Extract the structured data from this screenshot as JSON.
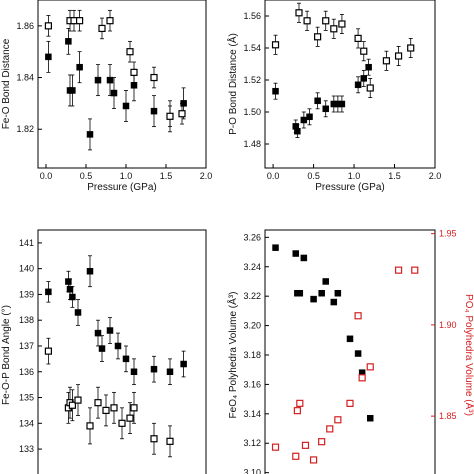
{
  "chart_data": [
    {
      "type": "scatter",
      "panel": "top-left",
      "xlabel": "Pressure (GPa)",
      "ylabel": "Fe-O Bond Distance",
      "xlim": [
        -0.1,
        2.0
      ],
      "ylim": [
        1.805,
        1.87
      ],
      "xticks": [
        "0.0",
        "0.5",
        "1.0",
        "1.5",
        "2.0"
      ],
      "yticks": [
        "1.82",
        "1.84",
        "1.86"
      ],
      "series": [
        {
          "marker": "filled-square",
          "x": [
            0.03,
            0.28,
            0.3,
            0.33,
            0.42,
            0.55,
            0.65,
            0.8,
            0.85,
            1.0,
            1.1,
            1.35,
            1.55,
            1.72
          ],
          "y": [
            1.848,
            1.854,
            1.835,
            1.835,
            1.844,
            1.818,
            1.839,
            1.839,
            1.834,
            1.829,
            1.837,
            1.827,
            1.825,
            1.83
          ],
          "err": [
            0.006,
            0.005,
            0.006,
            0.006,
            0.006,
            0.006,
            0.006,
            0.006,
            0.006,
            0.006,
            0.006,
            0.006,
            0.006,
            0.006
          ]
        },
        {
          "marker": "open-square",
          "x": [
            0.03,
            0.3,
            0.35,
            0.42,
            0.7,
            0.8,
            1.05,
            1.1,
            1.35,
            1.55,
            1.7
          ],
          "y": [
            1.86,
            1.862,
            1.862,
            1.862,
            1.859,
            1.862,
            1.85,
            1.842,
            1.84,
            1.825,
            1.826
          ],
          "err": [
            0.004,
            0.004,
            0.004,
            0.004,
            0.004,
            0.004,
            0.004,
            0.004,
            0.004,
            0.004,
            0.004
          ]
        }
      ]
    },
    {
      "type": "scatter",
      "panel": "top-right",
      "xlabel": "Pressure (GPa)",
      "ylabel": "P-O Bond Distance (Å)",
      "xlim": [
        -0.1,
        2.0
      ],
      "ylim": [
        1.465,
        1.57
      ],
      "xticks": [
        "0.0",
        "0.5",
        "1.0",
        "1.5",
        "2.0"
      ],
      "yticks": [
        "1.48",
        "1.50",
        "1.52",
        "1.54",
        "1.56"
      ],
      "series": [
        {
          "marker": "filled-square",
          "x": [
            0.03,
            0.28,
            0.3,
            0.38,
            0.45,
            0.55,
            0.65,
            0.75,
            0.8,
            0.85,
            1.05,
            1.12,
            1.18
          ],
          "y": [
            1.513,
            1.491,
            1.488,
            1.495,
            1.497,
            1.507,
            1.502,
            1.505,
            1.505,
            1.505,
            1.517,
            1.521,
            1.528
          ],
          "err": [
            0.005,
            0.004,
            0.004,
            0.005,
            0.005,
            0.005,
            0.005,
            0.005,
            0.005,
            0.005,
            0.005,
            0.005,
            0.005
          ]
        },
        {
          "marker": "open-square",
          "x": [
            0.03,
            0.32,
            0.42,
            0.55,
            0.65,
            0.75,
            0.85,
            1.05,
            1.12,
            1.2,
            1.4,
            1.55,
            1.7
          ],
          "y": [
            1.542,
            1.562,
            1.557,
            1.547,
            1.557,
            1.552,
            1.555,
            1.546,
            1.538,
            1.515,
            1.532,
            1.535,
            1.54
          ],
          "err": [
            0.006,
            0.006,
            0.006,
            0.006,
            0.006,
            0.006,
            0.006,
            0.006,
            0.006,
            0.006,
            0.006,
            0.006,
            0.006
          ]
        }
      ]
    },
    {
      "type": "scatter",
      "panel": "bottom-left",
      "xlabel": "",
      "ylabel": "Fe-O-P Bond Angle (°)",
      "xlim": [
        -0.1,
        2.0
      ],
      "ylim": [
        131.8,
        141.5
      ],
      "yticks": [
        "133",
        "134",
        "135",
        "136",
        "137",
        "138",
        "139",
        "140",
        "141"
      ],
      "series": [
        {
          "marker": "filled-square",
          "x": [
            0.03,
            0.28,
            0.3,
            0.33,
            0.4,
            0.55,
            0.65,
            0.7,
            0.8,
            0.9,
            1.0,
            1.1,
            1.35,
            1.55,
            1.72
          ],
          "y": [
            139.1,
            139.5,
            139.2,
            138.9,
            138.3,
            139.9,
            137.5,
            136.9,
            137.6,
            137.0,
            136.5,
            136.0,
            136.1,
            136.0,
            136.3
          ],
          "err": [
            0.4,
            0.4,
            0.4,
            0.4,
            0.5,
            0.6,
            0.5,
            0.5,
            0.5,
            0.5,
            0.5,
            0.5,
            0.5,
            0.5,
            0.5
          ]
        },
        {
          "marker": "open-square",
          "x": [
            0.03,
            0.28,
            0.3,
            0.33,
            0.4,
            0.55,
            0.65,
            0.75,
            0.85,
            0.95,
            1.05,
            1.1,
            1.35,
            1.55
          ],
          "y": [
            136.8,
            134.6,
            134.8,
            134.7,
            134.9,
            133.9,
            134.8,
            134.5,
            134.6,
            134.0,
            134.2,
            134.6,
            133.4,
            133.3
          ],
          "err": [
            0.5,
            0.6,
            0.6,
            0.6,
            0.6,
            0.7,
            0.6,
            0.6,
            0.6,
            0.6,
            0.6,
            0.6,
            0.6,
            0.6
          ]
        }
      ]
    },
    {
      "type": "scatter",
      "panel": "bottom-right",
      "xlabel": "",
      "ylabel": "FeO₄ Polyhedra Volume (Å³)",
      "ylabel2": "PO₄ Polyhedra Volume (Å³)",
      "xlim": [
        -0.1,
        2.0
      ],
      "ylim": [
        3.095,
        3.265
      ],
      "ylim2": [
        1.815,
        1.952
      ],
      "yticks": [
        "3.10",
        "3.12",
        "3.14",
        "3.16",
        "3.18",
        "3.20",
        "3.22",
        "3.24",
        "3.26"
      ],
      "yticks2": [
        "1.85",
        "1.90",
        "1.95"
      ],
      "series": [
        {
          "marker": "filled-square",
          "axis": "left",
          "color": "#000000",
          "x": [
            0.03,
            0.28,
            0.3,
            0.33,
            0.38,
            0.5,
            0.6,
            0.65,
            0.75,
            0.8,
            0.95,
            1.05,
            1.1,
            1.2
          ],
          "y": [
            3.253,
            3.249,
            3.222,
            3.222,
            3.246,
            3.218,
            3.222,
            3.23,
            3.216,
            3.222,
            3.191,
            3.181,
            3.168,
            3.137
          ]
        },
        {
          "marker": "open-square",
          "axis": "right",
          "color": "#d42020",
          "x": [
            0.03,
            0.28,
            0.3,
            0.33,
            0.4,
            0.5,
            0.6,
            0.7,
            0.8,
            0.95,
            1.05,
            1.1,
            1.2,
            1.55,
            1.75
          ],
          "y": [
            1.833,
            1.828,
            1.853,
            1.857,
            1.834,
            1.826,
            1.836,
            1.843,
            1.848,
            1.857,
            1.905,
            1.871,
            1.877,
            1.93,
            1.93
          ]
        }
      ]
    }
  ]
}
